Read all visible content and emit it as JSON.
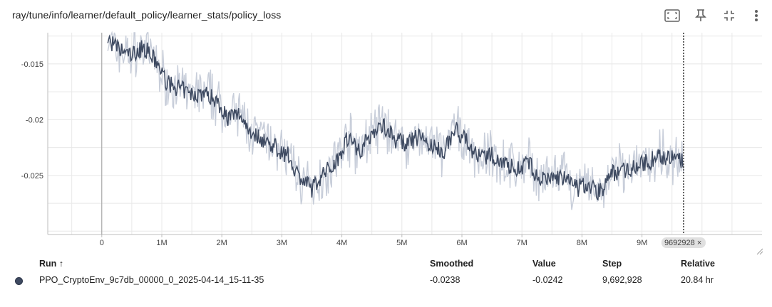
{
  "card": {
    "title": "ray/tune/info/learner/default_policy/learner_stats/policy_loss"
  },
  "toolbar": {
    "icons": [
      "fit-domain-icon",
      "pin-icon",
      "collapse-icon",
      "more-vert-icon"
    ]
  },
  "chart_data": {
    "type": "line",
    "title": "",
    "xlabel": "",
    "ylabel": "",
    "x_ticks": [
      "0",
      "1M",
      "2M",
      "3M",
      "4M",
      "5M",
      "6M",
      "7M",
      "8M",
      "9M"
    ],
    "x_tick_values": [
      0,
      1000000,
      2000000,
      3000000,
      4000000,
      5000000,
      6000000,
      7000000,
      8000000,
      9000000
    ],
    "y_ticks": [
      "-0.015",
      "-0.02",
      "-0.025"
    ],
    "y_tick_values": [
      -0.015,
      -0.02,
      -0.025
    ],
    "xlim": [
      -900000,
      11000000
    ],
    "ylim": [
      -0.0303,
      -0.0122
    ],
    "grid": true,
    "hover_step": 9692928,
    "hover_label": "9692928",
    "series": [
      {
        "name": "PPO_CryptoEnv_9c7db_00000_0_2025-04-14_15-11-35",
        "color": "#3e4a61",
        "raw_color": "#c7cdd9",
        "x": [
          100000,
          300000,
          500000,
          700000,
          900000,
          1100000,
          1300000,
          1500000,
          1700000,
          1900000,
          2100000,
          2300000,
          2500000,
          2700000,
          2900000,
          3100000,
          3300000,
          3500000,
          3700000,
          3900000,
          4100000,
          4300000,
          4500000,
          4700000,
          4900000,
          5100000,
          5300000,
          5500000,
          5700000,
          5900000,
          6100000,
          6300000,
          6500000,
          6700000,
          6900000,
          7100000,
          7300000,
          7500000,
          7700000,
          7900000,
          8100000,
          8300000,
          8500000,
          8700000,
          8900000,
          9100000,
          9300000,
          9500000,
          9692928
        ],
        "smoothed": [
          -0.0128,
          -0.0138,
          -0.0142,
          -0.0135,
          -0.0148,
          -0.0168,
          -0.0172,
          -0.0178,
          -0.0176,
          -0.0182,
          -0.0198,
          -0.0195,
          -0.0212,
          -0.0218,
          -0.0225,
          -0.0232,
          -0.0252,
          -0.0262,
          -0.0248,
          -0.0238,
          -0.0215,
          -0.0228,
          -0.0212,
          -0.0205,
          -0.0218,
          -0.0222,
          -0.0214,
          -0.0225,
          -0.0228,
          -0.0208,
          -0.0222,
          -0.0235,
          -0.0232,
          -0.0238,
          -0.0245,
          -0.0238,
          -0.0255,
          -0.0252,
          -0.0252,
          -0.0262,
          -0.0258,
          -0.0265,
          -0.0248,
          -0.0245,
          -0.0242,
          -0.0238,
          -0.0232,
          -0.0235,
          -0.0238
        ],
        "raw": [
          -0.0122,
          -0.0132,
          -0.015,
          -0.0128,
          -0.014,
          -0.016,
          -0.018,
          -0.017,
          -0.0185,
          -0.0176,
          -0.019,
          -0.0205,
          -0.0205,
          -0.0228,
          -0.0218,
          -0.024,
          -0.0262,
          -0.0255,
          -0.0262,
          -0.023,
          -0.0222,
          -0.0236,
          -0.0205,
          -0.0212,
          -0.021,
          -0.023,
          -0.0208,
          -0.0232,
          -0.022,
          -0.0214,
          -0.0228,
          -0.0242,
          -0.0226,
          -0.0244,
          -0.0238,
          -0.0246,
          -0.0262,
          -0.0246,
          -0.0258,
          -0.0255,
          -0.0264,
          -0.0258,
          -0.0254,
          -0.024,
          -0.0236,
          -0.0244,
          -0.0226,
          -0.0242,
          -0.0242
        ]
      }
    ]
  },
  "table": {
    "headers": {
      "run": "Run ↑",
      "smoothed": "Smoothed",
      "value": "Value",
      "step": "Step",
      "relative": "Relative"
    },
    "rows": [
      {
        "run": "PPO_CryptoEnv_9c7db_00000_0_2025-04-14_15-11-35",
        "smoothed": "-0.0238",
        "value": "-0.0242",
        "step": "9,692,928",
        "relative": "20.84 hr"
      }
    ]
  }
}
